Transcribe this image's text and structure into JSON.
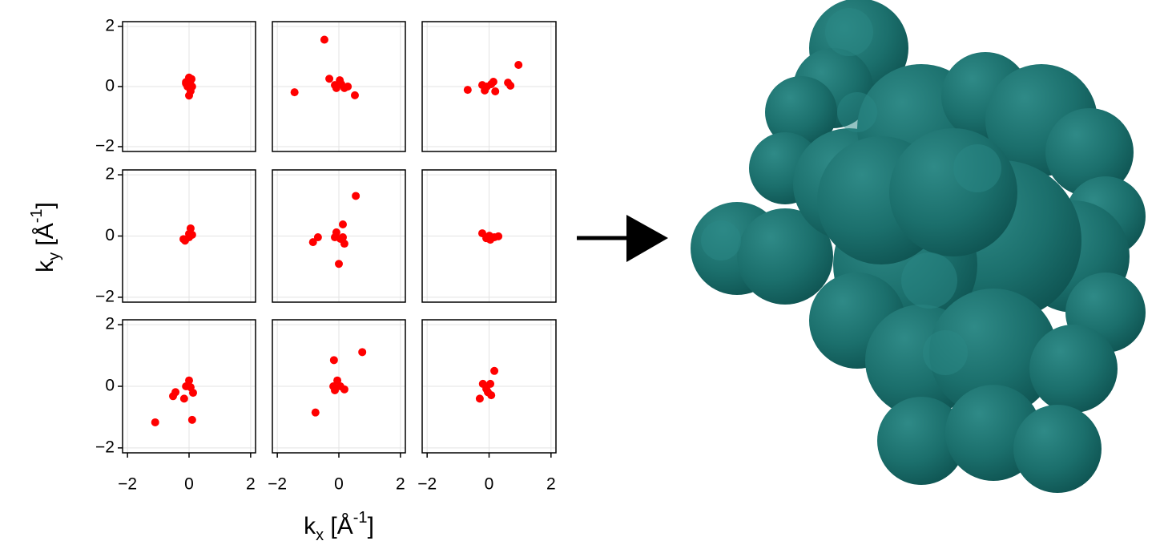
{
  "figure": {
    "xlabel": [
      {
        "text": "k"
      },
      {
        "text": "x",
        "shift": "sub"
      },
      {
        "text": " [Å"
      },
      {
        "text": "-1",
        "shift": "super"
      },
      {
        "text": "]"
      }
    ],
    "ylabel": [
      {
        "text": "k"
      },
      {
        "text": "y",
        "shift": "sub"
      },
      {
        "text": " [Å"
      },
      {
        "text": "-1",
        "shift": "super"
      },
      {
        "text": "]"
      }
    ]
  },
  "chart_data": [
    {
      "type": "scatter",
      "color": "#ff0000",
      "grid": true,
      "xlim": [
        -2.16,
        2.16
      ],
      "ylim": [
        -2.16,
        2.16
      ],
      "xticks": [
        {
          "value": -2,
          "label": "−2"
        },
        0,
        2
      ],
      "yticks": [
        {
          "value": -2,
          "label": "−2"
        },
        0,
        2
      ],
      "x": [
        -0.1,
        0,
        0.05,
        -0.05,
        0,
        0.1,
        0.05,
        -0.1,
        0.08
      ],
      "y": [
        0.1,
        0.3,
        0.2,
        0,
        -0.3,
        0,
        -0.15,
        0.15,
        0.25
      ]
    },
    {
      "type": "scatter",
      "color": "#ff0000",
      "grid": true,
      "xlim": [
        -2.16,
        2.16
      ],
      "ylim": [
        -2.16,
        2.16
      ],
      "xticks": [
        {
          "value": -2,
          "label": "−2"
        },
        0,
        2
      ],
      "yticks": [
        {
          "value": -2,
          "label": "−2"
        },
        0,
        2
      ],
      "x": [
        -0.47,
        -1.44,
        -0.31,
        -0.13,
        0.03,
        0.18,
        0.52,
        -0.08,
        0.08,
        0.29
      ],
      "y": [
        1.56,
        -0.19,
        0.26,
        0.05,
        0.21,
        -0.05,
        -0.29,
        -0.05,
        0.08,
        0
      ]
    },
    {
      "type": "scatter",
      "color": "#ff0000",
      "grid": true,
      "xlim": [
        -2.16,
        2.16
      ],
      "ylim": [
        -2.16,
        2.16
      ],
      "xticks": [
        {
          "value": -2,
          "label": "−2"
        },
        0,
        2
      ],
      "yticks": [
        {
          "value": -2,
          "label": "−2"
        },
        0,
        2
      ],
      "x": [
        -0.69,
        -0.22,
        -0.14,
        0.07,
        0.14,
        0.2,
        0.61,
        0.69,
        0.95,
        -0.07
      ],
      "y": [
        -0.11,
        0.05,
        -0.13,
        0.08,
        0.16,
        -0.16,
        0.13,
        0.03,
        0.72,
        0
      ]
    },
    {
      "type": "scatter",
      "color": "#ff0000",
      "grid": true,
      "xlim": [
        -2.16,
        2.16
      ],
      "ylim": [
        -2.16,
        2.16
      ],
      "xticks": [
        {
          "value": -2,
          "label": "−2"
        },
        0,
        2
      ],
      "yticks": [
        {
          "value": -2,
          "label": "−2"
        },
        0,
        2
      ],
      "x": [
        0.05,
        0,
        -0.13,
        0,
        0.1,
        -0.18
      ],
      "y": [
        0.25,
        0.07,
        -0.15,
        -0.04,
        0.04,
        -0.1
      ]
    },
    {
      "type": "scatter",
      "color": "#ff0000",
      "grid": true,
      "xlim": [
        -2.16,
        2.16
      ],
      "ylim": [
        -2.16,
        2.16
      ],
      "xticks": [
        {
          "value": -2,
          "label": "−2"
        },
        0,
        2
      ],
      "yticks": [
        {
          "value": -2,
          "label": "−2"
        },
        0,
        2
      ],
      "x": [
        0.55,
        0.13,
        -0.84,
        -0.68,
        -0.08,
        0.05,
        0,
        0.18,
        -0.13,
        0.13
      ],
      "y": [
        1.31,
        0.38,
        -0.2,
        -0.04,
        0.12,
        -0.09,
        -0.91,
        -0.25,
        -0.04,
        -0.04
      ]
    },
    {
      "type": "scatter",
      "color": "#ff0000",
      "grid": true,
      "xlim": [
        -2.16,
        2.16
      ],
      "ylim": [
        -2.16,
        2.16
      ],
      "xticks": [
        {
          "value": -2,
          "label": "−2"
        },
        0,
        2
      ],
      "yticks": [
        {
          "value": -2,
          "label": "−2"
        },
        0,
        2
      ],
      "x": [
        -0.22,
        -0.09,
        0.04,
        0.17,
        0.3,
        0.01
      ],
      "y": [
        0.09,
        -0.07,
        -0.12,
        -0.04,
        -0.01,
        0.01
      ]
    },
    {
      "type": "scatter",
      "color": "#ff0000",
      "grid": true,
      "xlim": [
        -2.16,
        2.16
      ],
      "ylim": [
        -2.16,
        2.16
      ],
      "xticks": [
        {
          "value": -2,
          "label": "−2"
        },
        0,
        2
      ],
      "yticks": [
        {
          "value": -2,
          "label": "−2"
        },
        0,
        2
      ],
      "x": [
        -1.1,
        -0.52,
        -0.44,
        -0.16,
        0.1,
        0,
        -0.1,
        0.13,
        0.05
      ],
      "y": [
        -1.17,
        -0.32,
        -0.19,
        -0.4,
        -1.09,
        0.19,
        0,
        -0.21,
        -0.03
      ]
    },
    {
      "type": "scatter",
      "color": "#ff0000",
      "grid": true,
      "xlim": [
        -2.16,
        2.16
      ],
      "ylim": [
        -2.16,
        2.16
      ],
      "xticks": [
        {
          "value": -2,
          "label": "−2"
        },
        0,
        2
      ],
      "yticks": [
        {
          "value": -2,
          "label": "−2"
        },
        0,
        2
      ],
      "x": [
        0.76,
        -0.16,
        -0.76,
        -0.05,
        -0.13,
        0.05,
        0.18,
        -0.18
      ],
      "y": [
        1.11,
        0.85,
        -0.85,
        0.19,
        -0.13,
        0,
        -0.1,
        0
      ]
    },
    {
      "type": "scatter",
      "color": "#ff0000",
      "grid": true,
      "xlim": [
        -2.16,
        2.16
      ],
      "ylim": [
        -2.16,
        2.16
      ],
      "xticks": [
        {
          "value": -2,
          "label": "−2"
        },
        0,
        2
      ],
      "yticks": [
        {
          "value": -2,
          "label": "−2"
        },
        0,
        2
      ],
      "x": [
        0.17,
        -0.3,
        -0.09,
        0.04,
        0.07,
        -0.2,
        -0.04
      ],
      "y": [
        0.5,
        -0.4,
        -0.08,
        0.08,
        -0.29,
        0.08,
        -0.19
      ]
    }
  ]
}
